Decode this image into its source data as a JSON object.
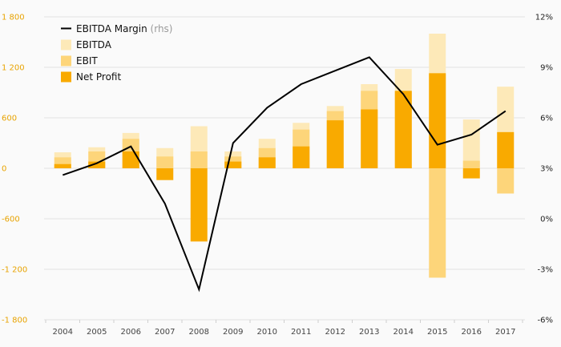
{
  "chart_data": {
    "type": "bar",
    "categories": [
      "2004",
      "2005",
      "2006",
      "2007",
      "2008",
      "2009",
      "2010",
      "2011",
      "2012",
      "2013",
      "2014",
      "2015",
      "2016",
      "2017"
    ],
    "series": [
      {
        "name": "EBITDA",
        "color": "#fde9b8",
        "kind": "bar",
        "values": [
          190,
          250,
          420,
          240,
          500,
          200,
          350,
          540,
          740,
          1000,
          1180,
          1600,
          580,
          970
        ]
      },
      {
        "name": "EBIT",
        "color": "#fdd57a",
        "kind": "bar",
        "values": [
          130,
          200,
          350,
          140,
          200,
          140,
          240,
          460,
          680,
          920,
          920,
          -1300,
          90,
          -300
        ]
      },
      {
        "name": "Net Profit",
        "color": "#f9aa00",
        "kind": "bar",
        "values": [
          50,
          80,
          200,
          -140,
          -870,
          80,
          130,
          260,
          570,
          700,
          920,
          1130,
          -120,
          430
        ]
      },
      {
        "name": "EBITDA Margin",
        "note": "(rhs)",
        "color": "#000000",
        "kind": "line",
        "axis": "right",
        "values": [
          2.6,
          3.3,
          4.3,
          0.9,
          -4.2,
          4.5,
          6.6,
          8.0,
          8.8,
          9.6,
          7.4,
          4.4,
          5.0,
          6.4
        ]
      }
    ],
    "left_axis": {
      "ticks": [
        "1 800",
        "1 200",
        "600",
        "0",
        "-600",
        "-1 200",
        "-1 800"
      ],
      "range": [
        -1800,
        1800
      ]
    },
    "right_axis": {
      "ticks": [
        "12%",
        "9%",
        "6%",
        "3%",
        "0%",
        "-3%",
        "-6%"
      ],
      "range": [
        -6,
        12
      ]
    },
    "legend_order": [
      3,
      0,
      1,
      2
    ],
    "legend_position": "top-left",
    "grid": true
  }
}
